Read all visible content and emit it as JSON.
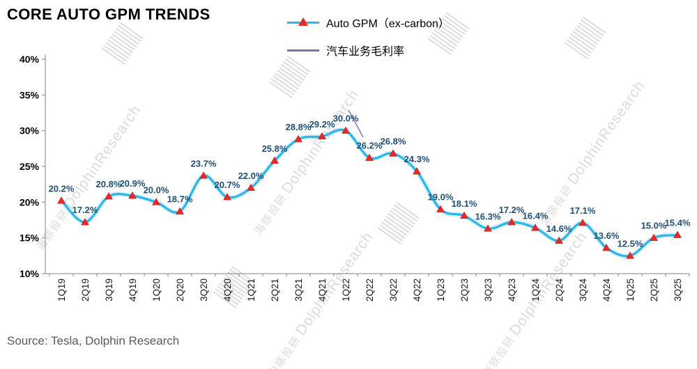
{
  "title": "CORE AUTO GPM TRENDS",
  "source": "Source: Tesla, Dolphin Research",
  "watermark": {
    "cn": "海豚投研",
    "en": "DolphinResearch"
  },
  "legend": [
    {
      "label": "Auto GPM（ex-carbon）",
      "type": "line-triangle",
      "line_color": "#2EB5E8",
      "marker_color": "#EE2724"
    },
    {
      "label": "汽车业务毛利率",
      "type": "line",
      "line_color": "#7A72AE"
    }
  ],
  "chart_data": {
    "type": "line",
    "title": "CORE AUTO GPM TRENDS",
    "categories": [
      "1Q19",
      "2Q19",
      "3Q19",
      "4Q19",
      "1Q20",
      "2Q20",
      "3Q20",
      "4Q20",
      "1Q21",
      "2Q21",
      "3Q21",
      "4Q21",
      "1Q22",
      "2Q22",
      "3Q22",
      "4Q22",
      "1Q23",
      "2Q23",
      "3Q23",
      "4Q23",
      "1Q24",
      "2Q24",
      "3Q24",
      "4Q24",
      "1Q25",
      "2Q25",
      "3Q25"
    ],
    "series": [
      {
        "name": "Auto GPM（ex-carbon）",
        "values": [
          20.2,
          17.2,
          20.8,
          20.9,
          20.0,
          18.7,
          23.7,
          20.7,
          22.0,
          25.8,
          28.8,
          29.2,
          30.0,
          26.2,
          26.8,
          24.3,
          19.0,
          18.1,
          16.3,
          17.2,
          16.4,
          14.6,
          17.1,
          13.6,
          12.5,
          15.0,
          15.4
        ]
      }
    ],
    "xlabel": "",
    "ylabel": "",
    "ylim": [
      10,
      40
    ],
    "yticks": [
      10,
      15,
      20,
      25,
      30,
      35,
      40
    ],
    "ytick_format": "percent",
    "grid": false,
    "legend_position": "top",
    "line_color": "#2EB5E8",
    "marker_color": "#EE2724",
    "label_color": "#1F4E79"
  }
}
